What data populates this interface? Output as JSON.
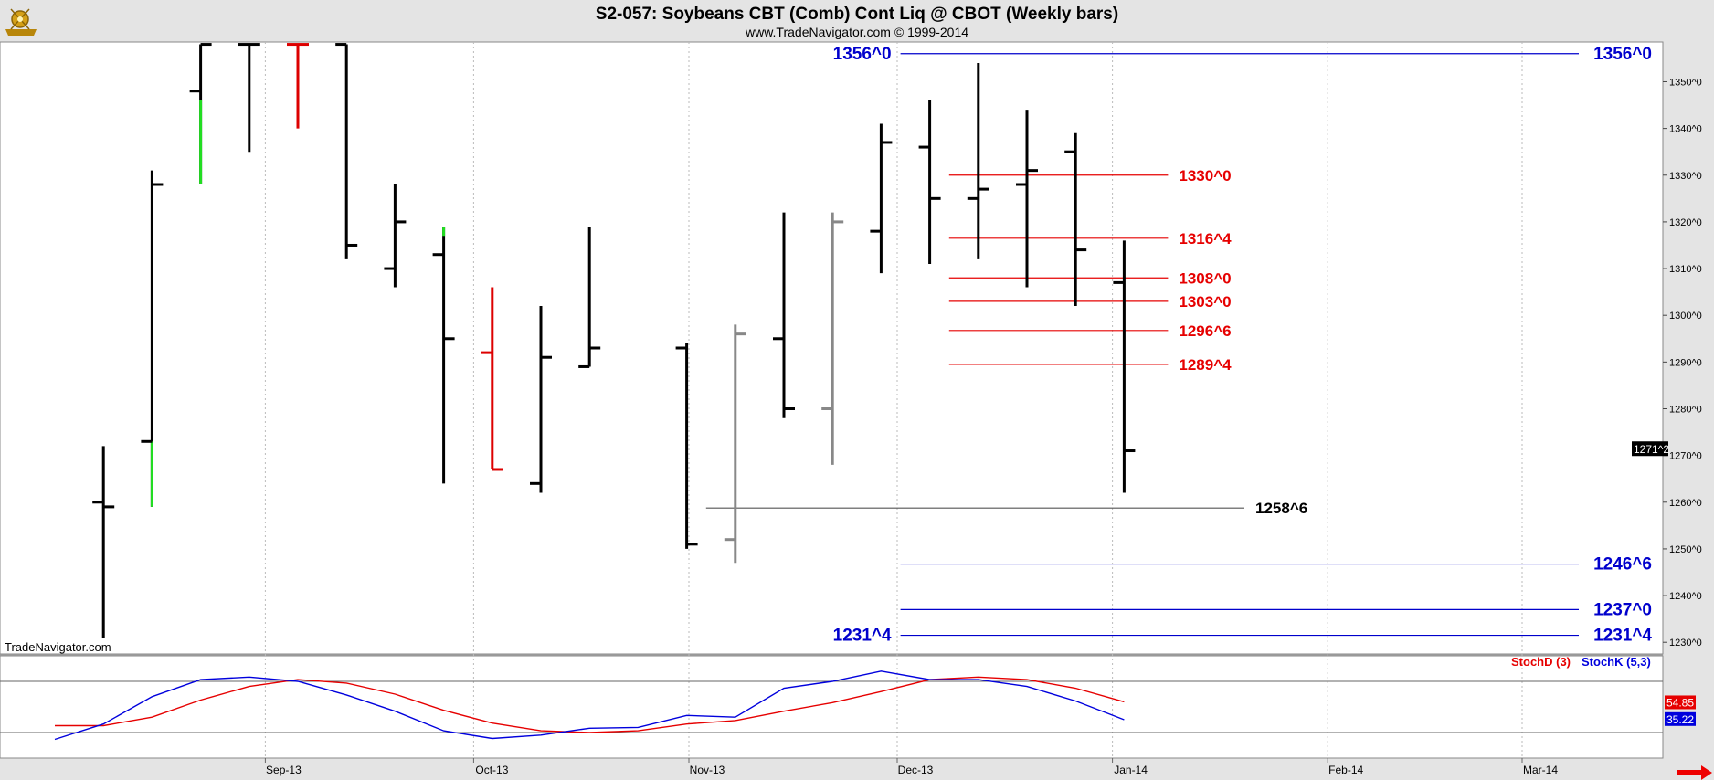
{
  "header": {
    "title": "S2-057:  Soybeans CBT (Comb) Cont Liq @ CBOT  (Weekly bars)",
    "subtitle": "www.TradeNavigator.com © 1999-2014"
  },
  "watermark": "TradeNavigator.com",
  "chart_data": [
    {
      "type": "ohlc",
      "name": "price",
      "y_ticks": [
        "1230^0",
        "1240^0",
        "1250^0",
        "1260^0",
        "1270^0",
        "1280^0",
        "1290^0",
        "1300^0",
        "1310^0",
        "1320^0",
        "1330^0",
        "1340^0",
        "1350^0"
      ],
      "y_tick_values": [
        1230,
        1240,
        1250,
        1260,
        1270,
        1280,
        1290,
        1300,
        1310,
        1320,
        1330,
        1340,
        1350
      ],
      "ylim": [
        1227.5,
        1358.5
      ],
      "x_labels": [
        "Sep-13",
        "Oct-13",
        "Nov-13",
        "Dec-13",
        "Jan-14",
        "Feb-14",
        "Mar-14"
      ],
      "last_price_label": "1271^2",
      "last_price": 1271.25,
      "bars": [
        {
          "week": "2013-08-05",
          "open": 1260,
          "high": 1272,
          "low": 1231,
          "close": 1259,
          "color": "#000000"
        },
        {
          "week": "2013-08-12",
          "open": 1273,
          "high": 1331,
          "low": 1259,
          "close": 1328,
          "color": "#000000",
          "low_segment": {
            "from": 1259,
            "to": 1273,
            "color": "#22dd22"
          }
        },
        {
          "week": "2013-08-19",
          "open": 1348,
          "high": 1358,
          "low": 1328,
          "close": 1358,
          "color": "#000000",
          "low_segment": {
            "from": 1328,
            "to": 1346,
            "color": "#22dd22"
          }
        },
        {
          "week": "2013-08-26",
          "open": 1358,
          "high": 1358,
          "low": 1335,
          "close": 1358,
          "color": "#000000"
        },
        {
          "week": "2013-09-02",
          "open": 1358,
          "high": 1358,
          "low": 1340,
          "close": 1358,
          "color": "#dd0000"
        },
        {
          "week": "2013-09-09",
          "open": 1358,
          "high": 1358,
          "low": 1312,
          "close": 1315,
          "color": "#000000"
        },
        {
          "week": "2013-09-16",
          "open": 1310,
          "high": 1328,
          "low": 1306,
          "close": 1320,
          "color": "#000000"
        },
        {
          "week": "2013-09-23",
          "open": 1313,
          "high": 1319,
          "low": 1264,
          "close": 1295,
          "color": "#000000",
          "high_segment": {
            "from": 1317,
            "to": 1319,
            "color": "#22dd22"
          }
        },
        {
          "week": "2013-09-30",
          "open": 1292,
          "high": 1306,
          "low": 1267,
          "close": 1267,
          "color": "#dd0000"
        },
        {
          "week": "2013-10-07",
          "open": 1264,
          "high": 1302,
          "low": 1262,
          "close": 1291,
          "color": "#000000"
        },
        {
          "week": "2013-10-14",
          "open": 1289,
          "high": 1319,
          "low": 1289,
          "close": 1293,
          "color": "#000000"
        },
        {
          "week": "2013-10-28",
          "open": 1293,
          "high": 1294,
          "low": 1250,
          "close": 1251,
          "color": "#000000"
        },
        {
          "week": "2013-11-04",
          "open": 1252,
          "high": 1298,
          "low": 1247,
          "close": 1296,
          "color": "#888888"
        },
        {
          "week": "2013-11-11",
          "open": 1295,
          "high": 1322,
          "low": 1278,
          "close": 1280,
          "color": "#000000"
        },
        {
          "week": "2013-11-18",
          "open": 1280,
          "high": 1322,
          "low": 1268,
          "close": 1320,
          "color": "#888888"
        },
        {
          "week": "2013-11-25",
          "open": 1318,
          "high": 1341,
          "low": 1309,
          "close": 1337,
          "color": "#000000"
        },
        {
          "week": "2013-12-02",
          "open": 1336,
          "high": 1346,
          "low": 1311,
          "close": 1325,
          "color": "#000000"
        },
        {
          "week": "2013-12-09",
          "open": 1325,
          "high": 1354,
          "low": 1312,
          "close": 1327,
          "color": "#000000"
        },
        {
          "week": "2013-12-16",
          "open": 1328,
          "high": 1344,
          "low": 1306,
          "close": 1331,
          "color": "#000000"
        },
        {
          "week": "2013-12-23",
          "open": 1335,
          "high": 1339,
          "low": 1302,
          "close": 1314,
          "color": "#000000"
        },
        {
          "week": "2013-12-30",
          "open": 1307,
          "high": 1316,
          "low": 1262,
          "close": 1271,
          "color": "#000000"
        }
      ],
      "levels": [
        {
          "label": "1356^0",
          "value": 1356,
          "color": "#0000cc",
          "start_week": "2013-12-02",
          "left_label": true,
          "right_label": true
        },
        {
          "label": "1246^6",
          "value": 1246.75,
          "color": "#0000cc",
          "start_week": "2013-12-02",
          "left_label": false,
          "right_label": true
        },
        {
          "label": "1237^0",
          "value": 1237,
          "color": "#0000cc",
          "start_week": "2013-12-02",
          "left_label": false,
          "right_label": true
        },
        {
          "label": "1231^4",
          "value": 1231.5,
          "color": "#0000cc",
          "start_week": "2013-12-02",
          "left_label": true,
          "right_label": true
        },
        {
          "label": "1330^0",
          "value": 1330,
          "color": "#e60000",
          "start_week": "2013-12-09",
          "end_week": "2014-01-09",
          "end_label": true
        },
        {
          "label": "1316^4",
          "value": 1316.5,
          "color": "#e60000",
          "start_week": "2013-12-09",
          "end_week": "2014-01-09",
          "end_label": true
        },
        {
          "label": "1308^0",
          "value": 1308,
          "color": "#e60000",
          "start_week": "2013-12-09",
          "end_week": "2014-01-09",
          "end_label": true
        },
        {
          "label": "1303^0",
          "value": 1303,
          "color": "#e60000",
          "start_week": "2013-12-09",
          "end_week": "2014-01-09",
          "end_label": true
        },
        {
          "label": "1296^6",
          "value": 1296.75,
          "color": "#e60000",
          "start_week": "2013-12-09",
          "end_week": "2014-01-09",
          "end_label": true
        },
        {
          "label": "1289^4",
          "value": 1289.5,
          "color": "#e60000",
          "start_week": "2013-12-09",
          "end_week": "2014-01-09",
          "end_label": true
        },
        {
          "label": "1258^6",
          "value": 1258.75,
          "color": "#555555",
          "start_week": "2013-11-04",
          "end_week": "2014-01-20",
          "end_label": true,
          "label_color": "#000000"
        }
      ]
    },
    {
      "type": "line",
      "name": "stochastic",
      "legend": [
        {
          "label": "StochD (3)",
          "color": "#e60000"
        },
        {
          "label": "StochK (5,3)",
          "color": "#0000dd"
        }
      ],
      "ylim": [
        -10,
        110
      ],
      "reference_lines": [
        20,
        80
      ],
      "last_values": [
        {
          "label": "54.85",
          "value": 54.85,
          "color": "#e60000"
        },
        {
          "label": "35.22",
          "value": 35.22,
          "color": "#0000dd"
        }
      ],
      "x": [
        "2013-07-29",
        "2013-08-05",
        "2013-08-12",
        "2013-08-19",
        "2013-08-26",
        "2013-09-02",
        "2013-09-09",
        "2013-09-16",
        "2013-09-23",
        "2013-09-30",
        "2013-10-07",
        "2013-10-14",
        "2013-10-21",
        "2013-10-28",
        "2013-11-04",
        "2013-11-11",
        "2013-11-18",
        "2013-11-25",
        "2013-12-02",
        "2013-12-09",
        "2013-12-16",
        "2013-12-23",
        "2013-12-30"
      ],
      "series": [
        {
          "name": "StochD (3)",
          "color": "#e60000",
          "values": [
            28,
            28,
            38,
            58,
            74,
            82,
            78,
            65,
            46,
            31,
            22,
            20,
            22,
            30,
            34,
            45,
            55,
            68,
            82,
            85,
            82,
            72,
            56
          ]
        },
        {
          "name": "StochK (5,3)",
          "color": "#0000dd",
          "values": [
            12,
            30,
            62,
            82,
            85,
            80,
            64,
            45,
            22,
            13,
            17,
            25,
            26,
            40,
            38,
            72,
            80,
            92,
            82,
            82,
            74,
            57,
            35
          ]
        }
      ]
    }
  ]
}
